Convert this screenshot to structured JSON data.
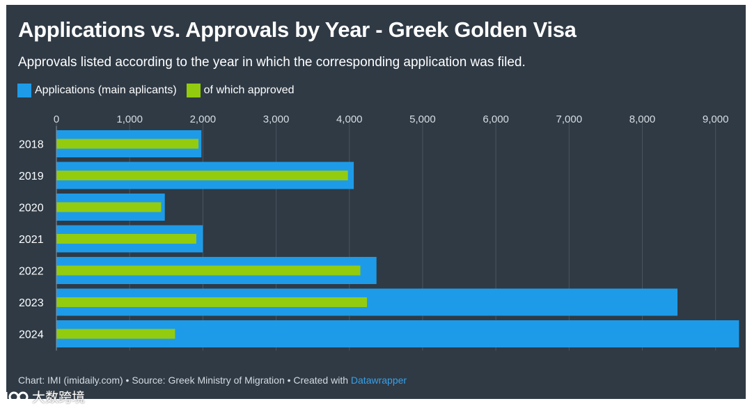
{
  "chart_data": {
    "type": "bar",
    "orientation": "horizontal",
    "title": "Applications vs. Approvals by Year - Greek Golden Visa",
    "subtitle": "Approvals listed according to the year in which the corresponding application was filed.",
    "categories": [
      "2018",
      "2019",
      "2020",
      "2021",
      "2022",
      "2023",
      "2024"
    ],
    "series": [
      {
        "name": "Applications (main aplicants)",
        "color": "#1e9be8",
        "values": [
          1980,
          4060,
          1480,
          2000,
          4370,
          8480,
          9320
        ]
      },
      {
        "name": "of which approved",
        "color": "#93cc0e",
        "values": [
          1940,
          3980,
          1430,
          1910,
          4150,
          4240,
          1620
        ]
      }
    ],
    "x_ticks": [
      "0",
      "1,000",
      "2,000",
      "3,000",
      "4,000",
      "5,000",
      "6,000",
      "7,000",
      "8,000",
      "9,000"
    ],
    "xlim": [
      0,
      9250
    ],
    "grid": true,
    "legend_position": "top-left",
    "xlabel": "",
    "ylabel": ""
  },
  "footer": {
    "prefix": "Chart: IMI (imidaily.com) • Source: Greek Ministry of Migration • Created with ",
    "tool": "Datawrapper"
  },
  "watermark": {
    "text": "大数跨境"
  },
  "colors": {
    "background": "#2f3a45",
    "grid": "#4a5561",
    "text": "#ffffff"
  }
}
